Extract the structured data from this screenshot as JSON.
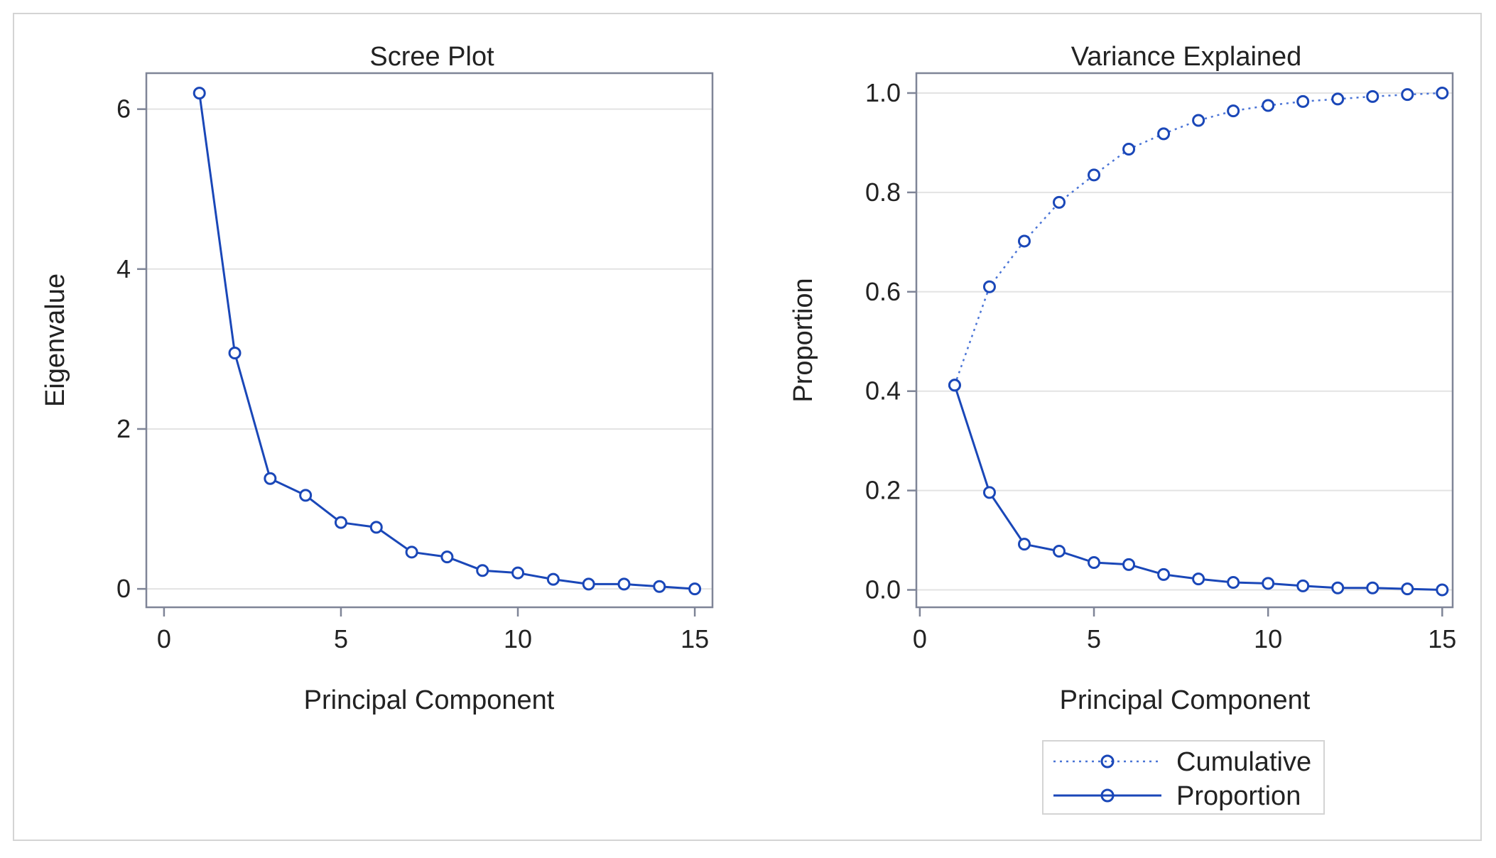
{
  "colors": {
    "series": "#1a47b8",
    "cumulative": "#4a74d6",
    "axis": "#7f8597",
    "grid": "#e3e3e3",
    "frame": "#d4d4d4"
  },
  "chart_data": [
    {
      "type": "line",
      "title": "Scree Plot",
      "xlabel": "Principal Component",
      "ylabel": "Eigenvalue",
      "xlim": [
        -0.5,
        15.5
      ],
      "ylim": [
        -0.23,
        6.45
      ],
      "xticks": [
        0,
        5,
        10,
        15
      ],
      "yticks": [
        0,
        2,
        4,
        6
      ],
      "grid": true,
      "x": [
        1,
        2,
        3,
        4,
        5,
        6,
        7,
        8,
        9,
        10,
        11,
        12,
        13,
        14,
        15
      ],
      "series": [
        {
          "values": [
            6.2,
            2.95,
            1.38,
            1.17,
            0.83,
            0.77,
            0.46,
            0.4,
            0.23,
            0.2,
            0.12,
            0.06,
            0.06,
            0.03,
            0.0
          ],
          "style": "solid"
        }
      ]
    },
    {
      "type": "line",
      "title": "Variance Explained",
      "xlabel": "Principal Component",
      "ylabel": "Proportion",
      "xlim": [
        -0.1,
        15.3
      ],
      "ylim": [
        -0.035,
        1.04
      ],
      "xticks": [
        0,
        5,
        10,
        15
      ],
      "yticks": [
        "0.0",
        "0.2",
        "0.4",
        "0.6",
        "0.8",
        "1.0"
      ],
      "grid": true,
      "legend_position": "bottom",
      "x": [
        1,
        2,
        3,
        4,
        5,
        6,
        7,
        8,
        9,
        10,
        11,
        12,
        13,
        14,
        15
      ],
      "series": [
        {
          "name": "Cumulative",
          "style": "dotted",
          "values": [
            0.412,
            0.61,
            0.702,
            0.78,
            0.835,
            0.887,
            0.918,
            0.945,
            0.964,
            0.975,
            0.983,
            0.988,
            0.993,
            0.997,
            1.0
          ]
        },
        {
          "name": "Proportion",
          "style": "solid",
          "values": [
            0.412,
            0.196,
            0.092,
            0.078,
            0.055,
            0.051,
            0.031,
            0.022,
            0.015,
            0.013,
            0.008,
            0.004,
            0.004,
            0.002,
            0.0
          ]
        }
      ]
    }
  ]
}
